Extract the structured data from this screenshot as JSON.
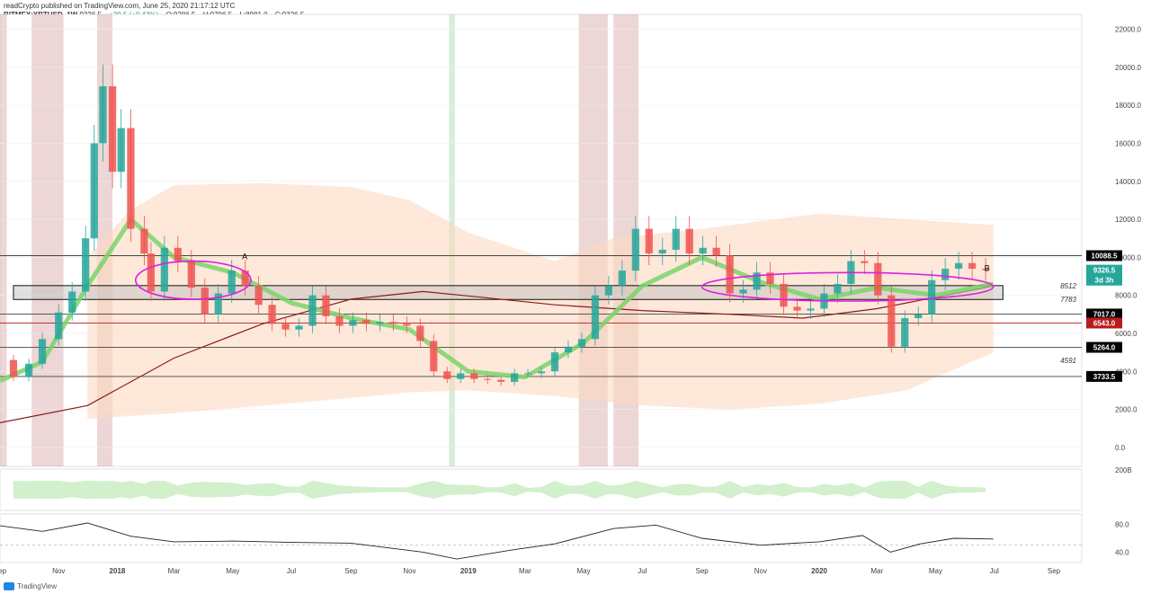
{
  "header": {
    "publisher_line": "readCrypto published on TradingView.com, June 25, 2020 21:17:12 UTC",
    "symbol": "BITMEX:XBTUSD, 1W",
    "last": "9326.5",
    "change": "+39.5 (+0.43%)",
    "open": "O:9286.5",
    "high": "H:9796.5",
    "low": "L:8981.0",
    "close": "C:9326.5"
  },
  "footer": {
    "logo_text": "TradingView"
  },
  "colors": {
    "up": "#26a69a",
    "down": "#ef5350",
    "accent_magenta": "#e01ee0",
    "band_fill": "#fbd9c0",
    "ribbon_green": "#7ad36a",
    "ribbon_red": "#e57373",
    "ribbon_cyan": "#8fd3e6",
    "shade_red": "#d7a5a5",
    "shade_green": "#a8d8a8"
  },
  "chart_data": [
    {
      "type": "line",
      "title": "",
      "symbol": "BITMEX:XBTUSD",
      "interval": "1W",
      "y_scale": "linear",
      "ylim": [
        -1000,
        22500
      ],
      "xlim": [
        "2017-09-01",
        "2020-09-30"
      ],
      "y_ticks": [
        "22000.0",
        "20000.0",
        "18000.0",
        "16000.0",
        "14000.0",
        "12000.0",
        "10000.0",
        "8000.0",
        "6000.0",
        "4000.0",
        "2000.0",
        "0.0"
      ],
      "x_tick_labels": [
        {
          "date": "2017-09-01",
          "label": "Sep"
        },
        {
          "date": "2017-11-01",
          "label": "Nov"
        },
        {
          "date": "2018-01-01",
          "label": "2018",
          "bold": true
        },
        {
          "date": "2018-03-01",
          "label": "Mar"
        },
        {
          "date": "2018-05-01",
          "label": "May"
        },
        {
          "date": "2018-07-01",
          "label": "Jul"
        },
        {
          "date": "2018-09-01",
          "label": "Sep"
        },
        {
          "date": "2018-11-01",
          "label": "Nov"
        },
        {
          "date": "2019-01-01",
          "label": "2019",
          "bold": true
        },
        {
          "date": "2019-03-01",
          "label": "Mar"
        },
        {
          "date": "2019-05-01",
          "label": "May"
        },
        {
          "date": "2019-07-01",
          "label": "Jul"
        },
        {
          "date": "2019-09-01",
          "label": "Sep"
        },
        {
          "date": "2019-11-01",
          "label": "Nov"
        },
        {
          "date": "2020-01-01",
          "label": "2020",
          "bold": true
        },
        {
          "date": "2020-03-01",
          "label": "Mar"
        },
        {
          "date": "2020-05-01",
          "label": "May"
        },
        {
          "date": "2020-07-01",
          "label": "Jul"
        },
        {
          "date": "2020-09-01",
          "label": "Sep"
        }
      ],
      "price_labels": [
        {
          "value": 10088.5,
          "label": "10088.5",
          "bg": "#000000",
          "fg": "#ffffff"
        },
        {
          "value": 9326.5,
          "label": "9326.5",
          "bg": "#26a69a",
          "fg": "#ffffff"
        },
        {
          "value": 8800,
          "label": "3d 3h",
          "bg": "#26a69a",
          "fg": "#ffffff"
        },
        {
          "value": 7017.0,
          "label": "7017.0",
          "bg": "#000000",
          "fg": "#ffffff"
        },
        {
          "value": 6543.0,
          "label": "6543.0",
          "bg": "#b71c1c",
          "fg": "#ffffff"
        },
        {
          "value": 5264.0,
          "label": "5264.0",
          "bg": "#000000",
          "fg": "#ffffff"
        },
        {
          "value": 3733.5,
          "label": "3733.5",
          "bg": "#000000",
          "fg": "#ffffff"
        }
      ],
      "level_annotations": [
        {
          "value": 8512,
          "label": "8512"
        },
        {
          "value": 7783,
          "label": "7783"
        },
        {
          "value": 4591,
          "label": "4591"
        }
      ],
      "horizontal_lines": [
        {
          "value": 10088.5,
          "color": "#444444"
        },
        {
          "value": 7017.0,
          "color": "#444444"
        },
        {
          "value": 6543.0,
          "color": "#b71c1c"
        },
        {
          "value": 5264.0,
          "color": "#444444"
        },
        {
          "value": 3733.5,
          "color": "#444444"
        }
      ],
      "support_box": {
        "x_start": "2017-09-15",
        "x_end": "2020-07-10",
        "y_low": 7783,
        "y_high": 8512
      },
      "ellipses": [
        {
          "label": "A",
          "x_start": "2018-01-20",
          "x_end": "2018-05-20",
          "y_low": 7800,
          "y_high": 9800
        },
        {
          "label": "B",
          "x_start": "2019-09-01",
          "x_end": "2020-06-30",
          "y_low": 7700,
          "y_high": 9200
        }
      ],
      "shaded_periods": [
        {
          "start": "2017-09-01",
          "end": "2017-09-08",
          "color": "red"
        },
        {
          "start": "2017-10-04",
          "end": "2017-11-06",
          "color": "red"
        },
        {
          "start": "2017-12-11",
          "end": "2017-12-27",
          "color": "red"
        },
        {
          "start": "2018-12-12",
          "end": "2018-12-18",
          "color": "green"
        },
        {
          "start": "2019-04-26",
          "end": "2019-05-26",
          "color": "red"
        },
        {
          "start": "2019-06-01",
          "end": "2019-06-27",
          "color": "red"
        }
      ],
      "series": [
        {
          "name": "",
          "kind": "candles_close",
          "values": [
            [
              "2017-09-01",
              4600
            ],
            [
              "2017-09-15",
              3700
            ],
            [
              "2017-10-01",
              4400
            ],
            [
              "2017-10-15",
              5700
            ],
            [
              "2017-11-01",
              7100
            ],
            [
              "2017-11-15",
              8200
            ],
            [
              "2017-11-29",
              11000
            ],
            [
              "2017-12-08",
              16000
            ],
            [
              "2017-12-17",
              19000
            ],
            [
              "2017-12-27",
              14500
            ],
            [
              "2018-01-05",
              16800
            ],
            [
              "2018-01-15",
              11500
            ],
            [
              "2018-01-29",
              10200
            ],
            [
              "2018-02-05",
              8200
            ],
            [
              "2018-02-19",
              10500
            ],
            [
              "2018-03-05",
              9800
            ],
            [
              "2018-03-19",
              8400
            ],
            [
              "2018-04-02",
              7000
            ],
            [
              "2018-04-16",
              8100
            ],
            [
              "2018-04-30",
              9300
            ],
            [
              "2018-05-14",
              8500
            ],
            [
              "2018-05-28",
              7500
            ],
            [
              "2018-06-11",
              6500
            ],
            [
              "2018-06-25",
              6200
            ],
            [
              "2018-07-09",
              6400
            ],
            [
              "2018-07-23",
              8000
            ],
            [
              "2018-08-06",
              6900
            ],
            [
              "2018-08-20",
              6400
            ],
            [
              "2018-09-03",
              6700
            ],
            [
              "2018-09-17",
              6500
            ],
            [
              "2018-10-01",
              6600
            ],
            [
              "2018-10-15",
              6500
            ],
            [
              "2018-10-29",
              6400
            ],
            [
              "2018-11-12",
              5600
            ],
            [
              "2018-11-26",
              4000
            ],
            [
              "2018-12-10",
              3600
            ],
            [
              "2018-12-24",
              3900
            ],
            [
              "2019-01-07",
              3600
            ],
            [
              "2019-01-21",
              3550
            ],
            [
              "2019-02-04",
              3450
            ],
            [
              "2019-02-18",
              3900
            ],
            [
              "2019-03-04",
              3900
            ],
            [
              "2019-03-18",
              4000
            ],
            [
              "2019-04-01",
              5000
            ],
            [
              "2019-04-15",
              5300
            ],
            [
              "2019-04-29",
              5700
            ],
            [
              "2019-05-13",
              8000
            ],
            [
              "2019-05-27",
              8500
            ],
            [
              "2019-06-10",
              9300
            ],
            [
              "2019-06-24",
              11500
            ],
            [
              "2019-07-08",
              10200
            ],
            [
              "2019-07-22",
              10400
            ],
            [
              "2019-08-05",
              11500
            ],
            [
              "2019-08-19",
              10200
            ],
            [
              "2019-09-02",
              10500
            ],
            [
              "2019-09-16",
              10100
            ],
            [
              "2019-09-30",
              8100
            ],
            [
              "2019-10-14",
              8300
            ],
            [
              "2019-10-28",
              9200
            ],
            [
              "2019-11-11",
              8600
            ],
            [
              "2019-11-25",
              7400
            ],
            [
              "2019-12-09",
              7200
            ],
            [
              "2019-12-23",
              7300
            ],
            [
              "2020-01-06",
              8100
            ],
            [
              "2020-01-20",
              8600
            ],
            [
              "2020-02-03",
              9800
            ],
            [
              "2020-02-17",
              9700
            ],
            [
              "2020-03-02",
              8000
            ],
            [
              "2020-03-16",
              5300
            ],
            [
              "2020-03-30",
              6800
            ],
            [
              "2020-04-13",
              7000
            ],
            [
              "2020-04-27",
              8800
            ],
            [
              "2020-05-11",
              9400
            ],
            [
              "2020-05-25",
              9700
            ],
            [
              "2020-06-08",
              9400
            ],
            [
              "2020-06-22",
              9326.5
            ]
          ]
        },
        {
          "name": "",
          "kind": "band_upper",
          "values": [
            [
              "2017-12-01",
              10000
            ],
            [
              "2018-01-15",
              12500
            ],
            [
              "2018-03-01",
              13800
            ],
            [
              "2018-06-01",
              13900
            ],
            [
              "2018-09-01",
              13700
            ],
            [
              "2018-11-01",
              13000
            ],
            [
              "2019-01-01",
              11300
            ],
            [
              "2019-04-01",
              9800
            ],
            [
              "2019-06-01",
              11000
            ],
            [
              "2019-09-01",
              11500
            ],
            [
              "2020-01-01",
              12300
            ],
            [
              "2020-06-30",
              11700
            ]
          ]
        },
        {
          "name": "",
          "kind": "band_lower",
          "values": [
            [
              "2017-12-01",
              1500
            ],
            [
              "2018-03-01",
              1800
            ],
            [
              "2018-06-01",
              2200
            ],
            [
              "2018-09-01",
              2600
            ],
            [
              "2018-11-01",
              2900
            ],
            [
              "2019-01-01",
              3000
            ],
            [
              "2019-04-01",
              2700
            ],
            [
              "2019-07-01",
              2200
            ],
            [
              "2019-10-01",
              2000
            ],
            [
              "2020-01-01",
              2300
            ],
            [
              "2020-04-01",
              3000
            ],
            [
              "2020-06-30",
              5000
            ]
          ]
        },
        {
          "name": "",
          "kind": "long_ma",
          "values": [
            [
              "2017-09-01",
              1300
            ],
            [
              "2017-12-01",
              2200
            ],
            [
              "2018-03-01",
              4700
            ],
            [
              "2018-06-01",
              6500
            ],
            [
              "2018-09-01",
              7800
            ],
            [
              "2018-11-15",
              8200
            ],
            [
              "2019-01-15",
              7900
            ],
            [
              "2019-04-01",
              7500
            ],
            [
              "2019-07-01",
              7200
            ],
            [
              "2019-10-01",
              7000
            ],
            [
              "2019-12-15",
              6800
            ],
            [
              "2020-03-01",
              7300
            ],
            [
              "2020-05-01",
              7900
            ],
            [
              "2020-06-30",
              8500
            ]
          ]
        },
        {
          "name": "",
          "kind": "short_ma",
          "values": [
            [
              "2017-09-01",
              3500
            ],
            [
              "2017-10-15",
              4500
            ],
            [
              "2017-12-01",
              8500
            ],
            [
              "2018-01-15",
              12000
            ],
            [
              "2018-03-01",
              10000
            ],
            [
              "2018-05-01",
              9200
            ],
            [
              "2018-07-01",
              7600
            ],
            [
              "2018-09-01",
              6800
            ],
            [
              "2018-11-01",
              6200
            ],
            [
              "2019-01-01",
              4000
            ],
            [
              "2019-03-01",
              3700
            ],
            [
              "2019-05-01",
              5500
            ],
            [
              "2019-07-01",
              8500
            ],
            [
              "2019-09-01",
              10000
            ],
            [
              "2019-11-01",
              8700
            ],
            [
              "2020-01-01",
              7800
            ],
            [
              "2020-03-01",
              8400
            ],
            [
              "2020-05-01",
              8000
            ],
            [
              "2020-06-30",
              8600
            ]
          ]
        }
      ]
    },
    {
      "type": "area",
      "name": "volume_pane",
      "y_ticks": [
        "200B"
      ],
      "ylim": [
        0,
        200
      ]
    },
    {
      "type": "line",
      "name": "oscillator_pane",
      "y_ticks": [
        "80.0",
        "40.0"
      ],
      "ylim": [
        25,
        95
      ],
      "values": [
        [
          "2017-09-01",
          78
        ],
        [
          "2017-10-15",
          70
        ],
        [
          "2017-12-01",
          82
        ],
        [
          "2018-01-15",
          63
        ],
        [
          "2018-03-01",
          55
        ],
        [
          "2018-05-01",
          56
        ],
        [
          "2018-07-01",
          54
        ],
        [
          "2018-09-01",
          53
        ],
        [
          "2018-11-15",
          40
        ],
        [
          "2018-12-20",
          30
        ],
        [
          "2019-02-15",
          43
        ],
        [
          "2019-04-01",
          52
        ],
        [
          "2019-06-01",
          74
        ],
        [
          "2019-07-15",
          79
        ],
        [
          "2019-09-01",
          60
        ],
        [
          "2019-11-01",
          50
        ],
        [
          "2020-01-01",
          55
        ],
        [
          "2020-02-15",
          64
        ],
        [
          "2020-03-15",
          40
        ],
        [
          "2020-04-15",
          52
        ],
        [
          "2020-05-20",
          60
        ],
        [
          "2020-06-30",
          59
        ]
      ]
    }
  ]
}
